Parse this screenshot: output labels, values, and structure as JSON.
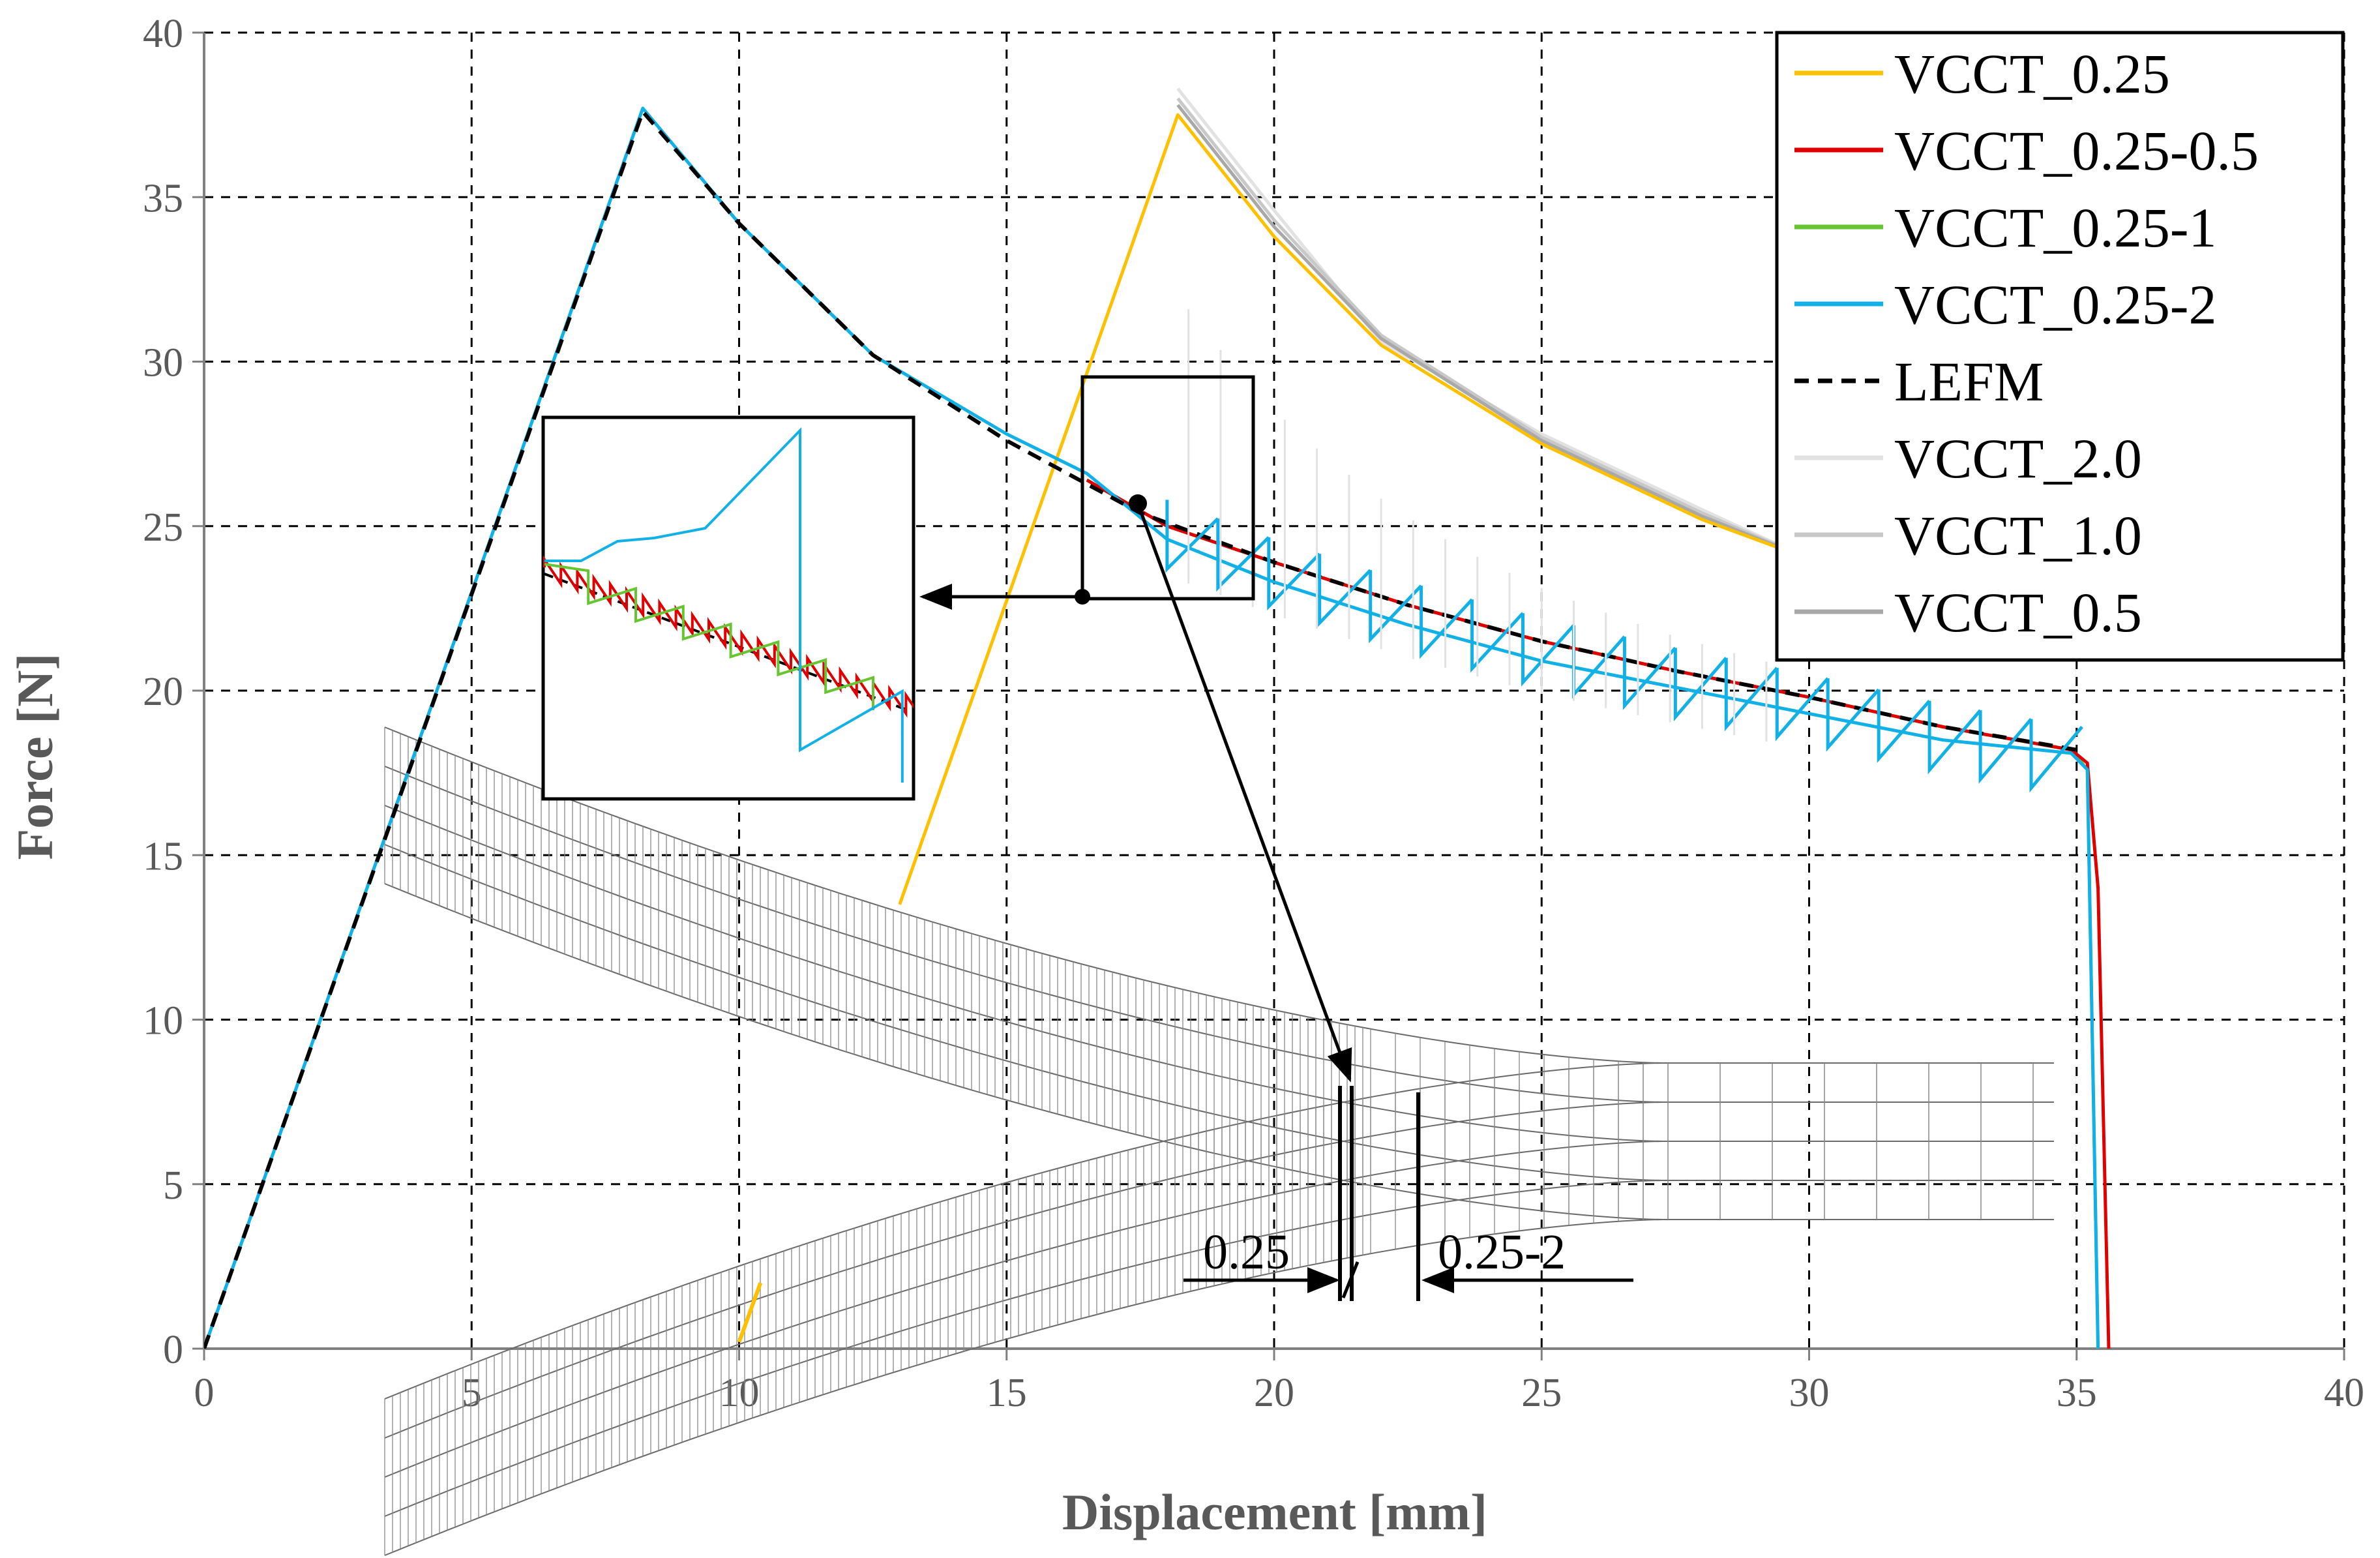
{
  "chart_data": {
    "type": "line",
    "title": "",
    "xlabel": "Displacement [mm]",
    "ylabel": "Force [N]",
    "xlim": [
      0,
      40
    ],
    "ylim": [
      0,
      40
    ],
    "xticks": [
      0,
      5,
      10,
      15,
      20,
      25,
      30,
      35,
      40
    ],
    "yticks": [
      0,
      5,
      10,
      15,
      20,
      25,
      30,
      35,
      40
    ],
    "grid": true,
    "legend_position": "top-right",
    "series": [
      {
        "name": "VCCT_0.25",
        "color": "#FFC000",
        "x": [
          13,
          18.2,
          20,
          22,
          25,
          28,
          30
        ],
        "y": [
          13.5,
          37.5,
          33.8,
          30.5,
          27.5,
          25.2,
          24
        ]
      },
      {
        "name": "VCCT_0.25-0.5",
        "color": "#E00000",
        "x": [
          16.5,
          18,
          20,
          22.5,
          25,
          27.5,
          30,
          32.5,
          34.9,
          35.2,
          35.4,
          35.6
        ],
        "y": [
          26.4,
          25,
          23.9,
          22.6,
          21.5,
          20.6,
          19.8,
          18.9,
          18.2,
          17.8,
          14,
          0
        ]
      },
      {
        "name": "VCCT_0.25-1",
        "color": "#66C530",
        "x": [
          16.5,
          18,
          20,
          22.5,
          25,
          27.5,
          30,
          32.5,
          34.9,
          35.2,
          35.4
        ],
        "y": [
          26.4,
          25,
          23.9,
          22.6,
          21.5,
          20.6,
          19.8,
          18.9,
          18.2,
          17.6,
          0
        ]
      },
      {
        "name": "VCCT_0.25-2",
        "color": "#11B1E8",
        "x": [
          0,
          8.2,
          10,
          12.5,
          15,
          16.5,
          18,
          20,
          22.5,
          25,
          27.5,
          30,
          32.5,
          34.9,
          35.2,
          35.4
        ],
        "y": [
          0,
          37.7,
          34.2,
          30.2,
          27.8,
          26.6,
          24.6,
          23.3,
          22,
          20.9,
          20.1,
          19.3,
          18.5,
          18.1,
          17.6,
          0
        ]
      },
      {
        "name": "LEFM",
        "color": "#000000",
        "x": [
          0,
          8.2,
          10,
          12.5,
          15,
          17.5,
          20,
          22.5,
          25,
          27.5,
          30,
          32.5,
          35
        ],
        "y": [
          0,
          37.6,
          34.2,
          30.2,
          27.6,
          25.4,
          23.9,
          22.6,
          21.5,
          20.6,
          19.8,
          18.9,
          18.2
        ]
      },
      {
        "name": "VCCT_2.0",
        "color": "#E2E2E2",
        "x": [
          18.2,
          20,
          22,
          25,
          28,
          30
        ],
        "y": [
          38.3,
          34.6,
          30.6,
          27.8,
          25.5,
          24
        ]
      },
      {
        "name": "VCCT_1.0",
        "color": "#C8C8C8",
        "x": [
          18.2,
          20,
          22,
          25,
          28,
          30
        ],
        "y": [
          38,
          34.3,
          30.8,
          27.7,
          25.4,
          24
        ]
      },
      {
        "name": "VCCT_0.5",
        "color": "#A8A8A8",
        "x": [
          18.2,
          20,
          22,
          25,
          28,
          30
        ],
        "y": [
          37.8,
          34.1,
          30.7,
          27.6,
          25.3,
          24
        ]
      }
    ],
    "annotations": [
      "0.25",
      "0.25-2"
    ]
  }
}
